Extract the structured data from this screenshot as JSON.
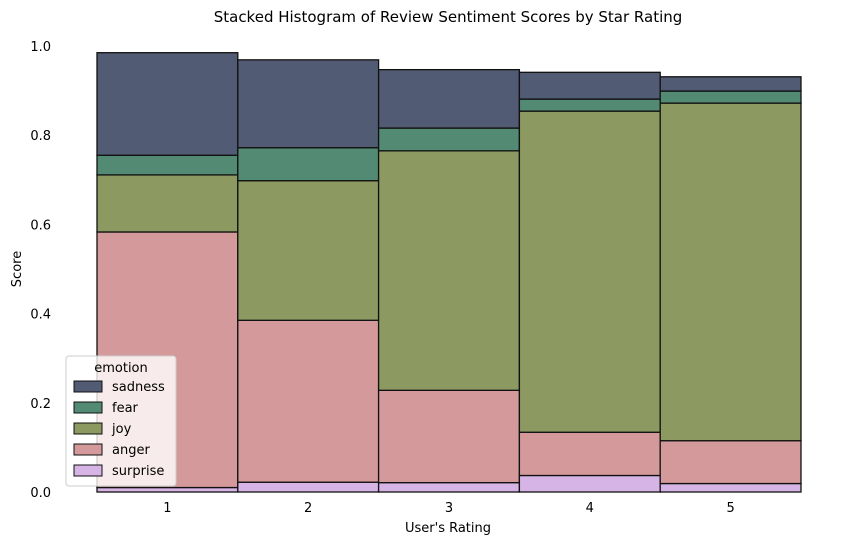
{
  "chart_data": {
    "type": "bar",
    "stacked": true,
    "title": "Stacked Histogram of Review Sentiment Scores by Star Rating",
    "xlabel": "User's Rating",
    "ylabel": "Score",
    "categories": [
      "1",
      "2",
      "3",
      "4",
      "5"
    ],
    "ylim": [
      0,
      1.0
    ],
    "yticks": [
      "0.0",
      "0.2",
      "0.4",
      "0.6",
      "0.8",
      "1.0"
    ],
    "grid": false,
    "legend": {
      "title": "emotion",
      "placement": "lower-left"
    },
    "series": [
      {
        "name": "surprise",
        "color": "#d6b4e5",
        "values": [
          0.01,
          0.022,
          0.021,
          0.037,
          0.019
        ]
      },
      {
        "name": "anger",
        "color": "#d49a9b",
        "values": [
          0.573,
          0.363,
          0.207,
          0.097,
          0.096
        ]
      },
      {
        "name": "joy",
        "color": "#8c9a62",
        "values": [
          0.128,
          0.313,
          0.537,
          0.72,
          0.757
        ]
      },
      {
        "name": "fear",
        "color": "#528a74",
        "values": [
          0.044,
          0.074,
          0.051,
          0.027,
          0.027
        ]
      },
      {
        "name": "sadness",
        "color": "#525b74",
        "values": [
          0.23,
          0.197,
          0.131,
          0.06,
          0.032
        ]
      }
    ],
    "legend_order": [
      "sadness",
      "fear",
      "joy",
      "anger",
      "surprise"
    ]
  }
}
